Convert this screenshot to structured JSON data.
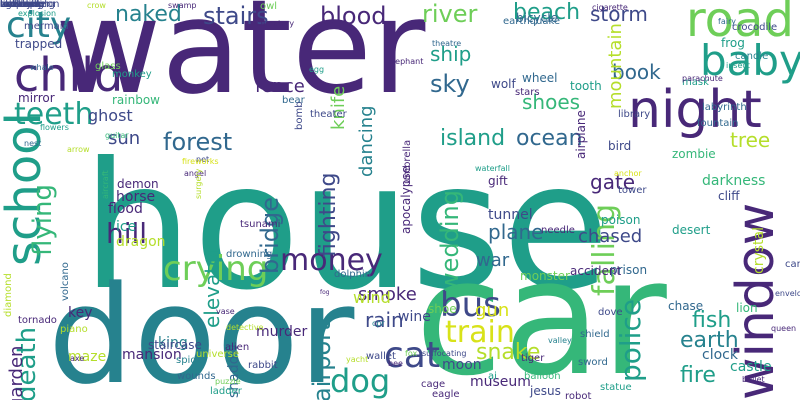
{
  "palette": {
    "deep_purple": "#440154",
    "purple": "#482878",
    "indigo": "#3e4989",
    "blue": "#31688e",
    "slate": "#26828e",
    "teal": "#1f9e89",
    "green": "#35b779",
    "lime": "#6ece58",
    "yellow_green": "#b5de2b",
    "yellow": "#d8e219"
  },
  "words": [
    "water",
    "house",
    "car",
    "door",
    "school",
    "window",
    "night",
    "road",
    "child",
    "city",
    "baby",
    "blood",
    "beach",
    "stairs",
    "naked",
    "river",
    "storm",
    "money",
    "crying",
    "bus",
    "cat",
    "dog",
    "train",
    "police",
    "falling",
    "fire",
    "forest",
    "island",
    "ocean",
    "ship",
    "sky",
    "knife",
    "dancing",
    "shoes",
    "book",
    "mountain",
    "death",
    "teeth",
    "flying",
    "fence",
    "wedding",
    "plane",
    "war",
    "chased",
    "bridge",
    "fighting",
    "tree",
    "hill",
    "airport",
    "snake",
    "fish",
    "earth",
    "garden",
    "gate",
    "elevator",
    "smoke",
    "rain",
    "gun",
    "wind",
    "sun",
    "ghost",
    "mirror",
    "trapped",
    "demon",
    "horse",
    "flood",
    "ice",
    "dragon",
    "key",
    "wine",
    "king",
    "maze",
    "mansion",
    "murder",
    "shoe",
    "zombie",
    "gift",
    "apocalypse",
    "bird",
    "prison",
    "clock",
    "castle",
    "museum",
    "jesus",
    "moon",
    "shadow",
    "bicycle",
    "wheel",
    "wolf",
    "tooth",
    "mask",
    "stars",
    "darkness",
    "cliff",
    "tunnel",
    "monster",
    "chase",
    "crystal",
    "lion",
    "desert",
    "accident",
    "staircase",
    "rainbow",
    "theater",
    "bear",
    "bomb",
    "umbrella",
    "tower",
    "poison",
    "needle",
    "airplane",
    "earthquake",
    "library",
    "fountain",
    "candle",
    "frog",
    "labyrinth",
    "angel",
    "surgery",
    "drowning",
    "tsunami",
    "dolphin",
    "diamond",
    "volcano",
    "tornado",
    "piano",
    "universe",
    "alien",
    "spider",
    "wallet",
    "rabbit",
    "wounds",
    "balloon",
    "tiger",
    "ai",
    "sword",
    "shield",
    "dove",
    "cage",
    "eagle",
    "robot",
    "statue",
    "ladder",
    "puzzle",
    "queen",
    "envelope",
    "candles",
    "cigarette",
    "explosion",
    "mermaid",
    "crow",
    "swamp",
    "owl",
    "crocodile",
    "whale",
    "glass",
    "monkey",
    "egg",
    "elephant",
    "theatre",
    "waterfall",
    "flowers",
    "nest",
    "arrow",
    "guitar",
    "net",
    "fireworks",
    "vase",
    "detective",
    "fog",
    "fox",
    "cpr",
    "bee",
    "valley",
    "insect",
    "parachute",
    "suffocating",
    "yacht",
    "axe",
    "aircraft",
    "fairy",
    "anchor",
    "bullet",
    "cemetery",
    "watermelon",
    "butterfly",
    "undressing",
    "lightning",
    "bow",
    "skeleton",
    "meadow",
    "empty",
    "ant",
    "hammer",
    "helicopter",
    "lobster",
    "carnival",
    "room"
  ]
}
